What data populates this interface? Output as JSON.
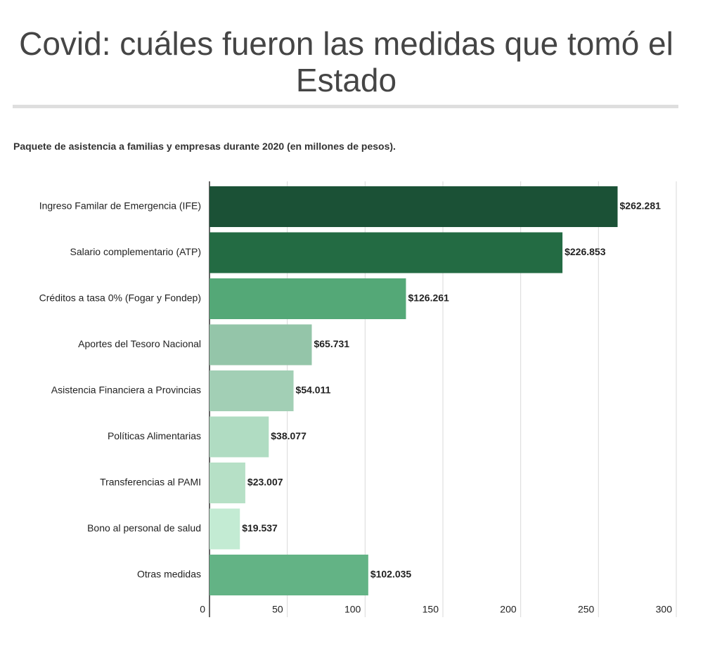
{
  "chart_data": {
    "type": "bar",
    "orientation": "horizontal",
    "title": "Covid: cuáles fueron las medidas que tomó el Estado",
    "subtitle": "Paquete de asistencia a familias y empresas durante 2020 (en millones de pesos).",
    "categories": [
      "Ingreso Familar de Emergencia (IFE)",
      "Salario complementario (ATP)",
      "Créditos a tasa 0% (Fogar y Fondep)",
      "Aportes del Tesoro Nacional",
      "Asistencia Financiera a Provincias",
      "Políticas Alimentarias",
      "Transferencias al PAMI",
      "Bono al personal de salud",
      "Otras medidas"
    ],
    "values": [
      262.281,
      226.853,
      126.261,
      65.731,
      54.011,
      38.077,
      23.007,
      19.537,
      102.035
    ],
    "value_labels": [
      "$262.281",
      "$226.853",
      "$126.261",
      "$65.731",
      "$54.011",
      "$38.077",
      "$23.007",
      "$19.537",
      "$102.035"
    ],
    "colors": [
      "#1b5136",
      "#236b43",
      "#54a877",
      "#94c5a9",
      "#a2cfb5",
      "#b0dcc2",
      "#b6e0c6",
      "#c3ebd3",
      "#63b385"
    ],
    "xlim": [
      0,
      300
    ],
    "xticks": [
      0,
      50,
      100,
      150,
      200,
      250,
      300
    ],
    "grid": true
  }
}
